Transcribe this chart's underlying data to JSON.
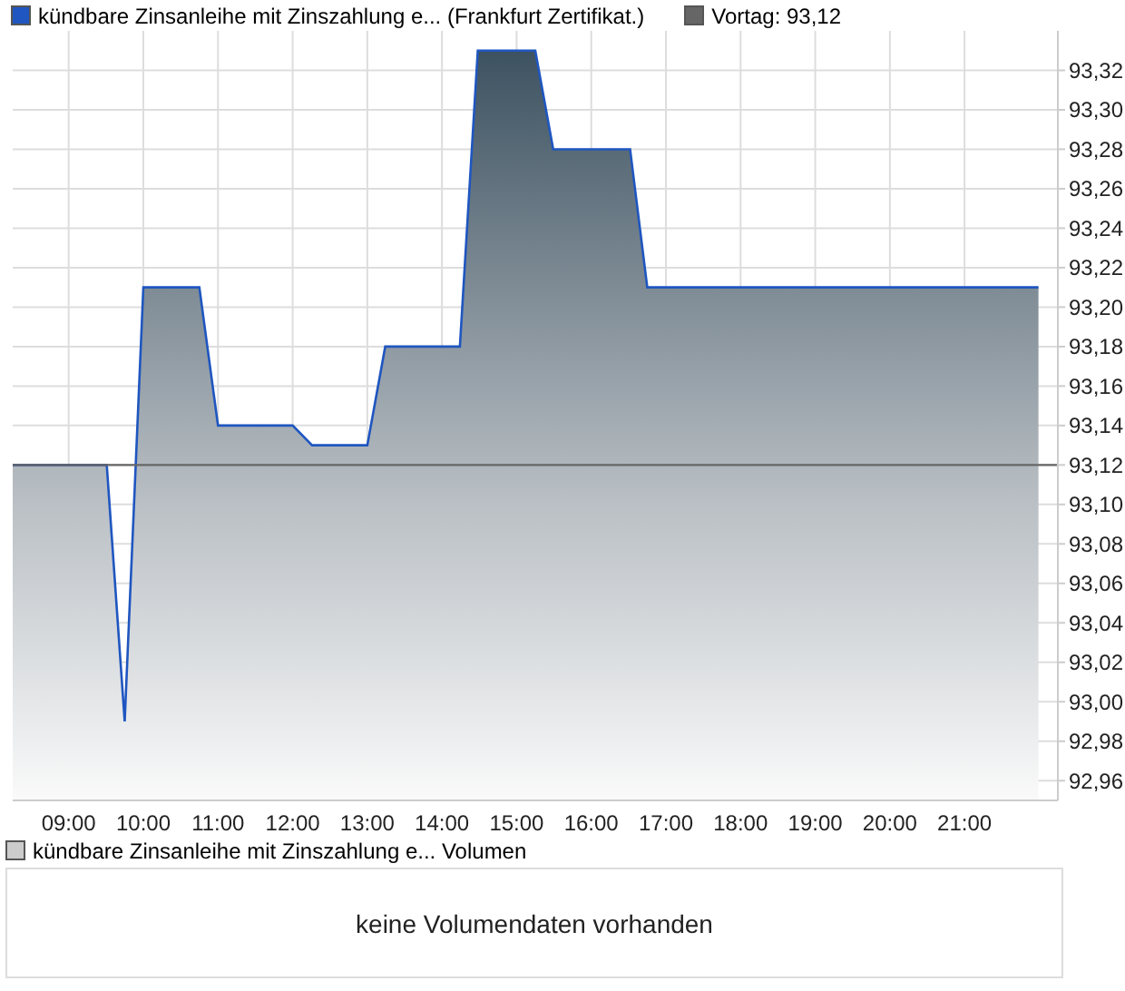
{
  "chart_data": [
    {
      "type": "area",
      "x": [
        8.25,
        9.51,
        9.75,
        10.0,
        10.75,
        11.0,
        12.0,
        12.26,
        13.0,
        13.24,
        14.24,
        14.48,
        15.25,
        15.49,
        16.52,
        16.75,
        21.99
      ],
      "series": [
        {
          "name": "kündbare Zinsanleihe mit Zinszahlung e... (Frankfurt Zertifikat.)",
          "color": "#1f56c0",
          "values": [
            93.12,
            93.12,
            92.99,
            93.21,
            93.21,
            93.14,
            93.14,
            93.13,
            93.13,
            93.18,
            93.18,
            93.33,
            93.33,
            93.28,
            93.28,
            93.21,
            93.21
          ]
        }
      ],
      "xlim": [
        8.25,
        22.25
      ],
      "xticks": [
        {
          "value": 9,
          "label": "09:00"
        },
        {
          "value": 10,
          "label": "10:00"
        },
        {
          "value": 11,
          "label": "11:00"
        },
        {
          "value": 12,
          "label": "12:00"
        },
        {
          "value": 13,
          "label": "13:00"
        },
        {
          "value": 14,
          "label": "14:00"
        },
        {
          "value": 15,
          "label": "15:00"
        },
        {
          "value": 16,
          "label": "16:00"
        },
        {
          "value": 17,
          "label": "17:00"
        },
        {
          "value": 18,
          "label": "18:00"
        },
        {
          "value": 19,
          "label": "19:00"
        },
        {
          "value": 20,
          "label": "20:00"
        },
        {
          "value": 21,
          "label": "21:00"
        }
      ],
      "ylim": [
        92.95,
        93.34
      ],
      "yticks": [
        {
          "value": 92.96,
          "label": "92,96"
        },
        {
          "value": 92.98,
          "label": "92,98"
        },
        {
          "value": 93.0,
          "label": "93,00"
        },
        {
          "value": 93.02,
          "label": "93,02"
        },
        {
          "value": 93.04,
          "label": "93,04"
        },
        {
          "value": 93.06,
          "label": "93,06"
        },
        {
          "value": 93.08,
          "label": "93,08"
        },
        {
          "value": 93.1,
          "label": "93,10"
        },
        {
          "value": 93.12,
          "label": "93,12"
        },
        {
          "value": 93.14,
          "label": "93,14"
        },
        {
          "value": 93.16,
          "label": "93,16"
        },
        {
          "value": 93.18,
          "label": "93,18"
        },
        {
          "value": 93.2,
          "label": "93,20"
        },
        {
          "value": 93.22,
          "label": "93,22"
        },
        {
          "value": 93.24,
          "label": "93,24"
        },
        {
          "value": 93.26,
          "label": "93,26"
        },
        {
          "value": 93.28,
          "label": "93,28"
        },
        {
          "value": 93.3,
          "label": "93,30"
        },
        {
          "value": 93.32,
          "label": "93,32"
        }
      ],
      "ref_lines": [
        {
          "axis": "y",
          "value": 93.12,
          "label": "Vortag: 93,12",
          "color": "#666666"
        }
      ],
      "grid": true,
      "legend": "top left"
    },
    {
      "type": "other",
      "title": "kündbare Zinsanleihe mit Zinszahlung e... Volumen",
      "annotations": [
        "keine Volumendaten vorhanden"
      ]
    }
  ]
}
